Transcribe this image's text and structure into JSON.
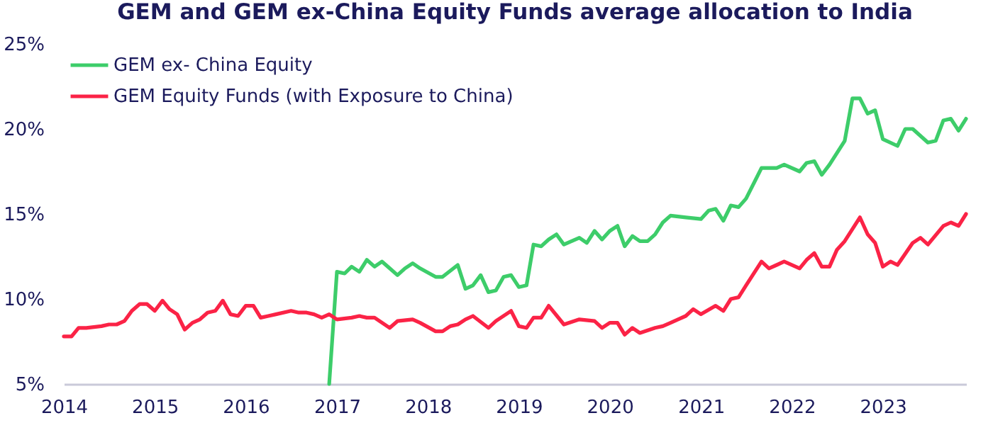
{
  "chart_data": {
    "type": "line",
    "title": "GEM and GEM ex-China Equity Funds average allocation to India",
    "xlim": [
      "2014-01",
      "2023-12"
    ],
    "xticks": [
      "2014",
      "2015",
      "2016",
      "2017",
      "2018",
      "2019",
      "2020",
      "2021",
      "2022",
      "2023"
    ],
    "ylim": [
      5,
      25
    ],
    "yticks": [
      {
        "value": 5,
        "label": "5%"
      },
      {
        "value": 10,
        "label": "10%"
      },
      {
        "value": 15,
        "label": "15%"
      },
      {
        "value": 20,
        "label": "20%"
      },
      {
        "value": 25,
        "label": "25%"
      }
    ],
    "legend": "top left",
    "series": [
      {
        "name": "GEM ex- China Equity",
        "color": "#3dcd6a",
        "x": [
          "2016-12",
          "2017-01",
          "2017-02",
          "2017-03",
          "2017-04",
          "2017-05",
          "2017-06",
          "2017-07",
          "2017-08",
          "2017-09",
          "2017-10",
          "2017-11",
          "2017-12",
          "2018-02",
          "2018-03",
          "2018-05",
          "2018-06",
          "2018-07",
          "2018-08",
          "2018-09",
          "2018-10",
          "2018-11",
          "2018-12",
          "2019-01",
          "2019-02",
          "2019-03",
          "2019-04",
          "2019-05",
          "2019-06",
          "2019-07",
          "2019-09",
          "2019-10",
          "2019-11",
          "2019-12",
          "2020-01",
          "2020-02",
          "2020-03",
          "2020-04",
          "2020-05",
          "2020-06",
          "2020-07",
          "2020-08",
          "2020-09",
          "2020-11",
          "2021-01",
          "2021-02",
          "2021-03",
          "2021-04",
          "2021-05",
          "2021-06",
          "2021-07",
          "2021-09",
          "2021-11",
          "2021-12",
          "2022-02",
          "2022-03",
          "2022-04",
          "2022-05",
          "2022-06",
          "2022-08",
          "2022-09",
          "2022-10",
          "2022-11",
          "2022-12",
          "2023-01",
          "2023-03",
          "2023-04",
          "2023-05",
          "2023-07",
          "2023-08",
          "2023-09",
          "2023-10",
          "2023-11",
          "2023-12"
        ],
        "values": [
          5.0,
          11.6,
          11.5,
          11.9,
          11.6,
          12.3,
          11.9,
          12.2,
          11.8,
          11.4,
          11.8,
          12.1,
          11.8,
          11.3,
          11.3,
          12.0,
          10.6,
          10.8,
          11.4,
          10.4,
          10.5,
          11.3,
          11.4,
          10.7,
          10.8,
          13.2,
          13.1,
          13.5,
          13.8,
          13.2,
          13.6,
          13.3,
          14.0,
          13.5,
          14.0,
          14.3,
          13.1,
          13.7,
          13.4,
          13.4,
          13.8,
          14.5,
          14.9,
          14.8,
          14.7,
          15.2,
          15.3,
          14.6,
          15.5,
          15.4,
          15.9,
          17.7,
          17.7,
          17.9,
          17.5,
          18.0,
          18.1,
          17.3,
          17.9,
          19.3,
          21.8,
          21.8,
          20.9,
          21.1,
          19.4,
          19.0,
          20.0,
          20.0,
          19.2,
          19.3,
          20.5,
          20.6,
          19.9,
          20.6
        ]
      },
      {
        "name": "GEM Equity Funds (with Exposure to China)",
        "color": "#fb2346",
        "x": [
          "2014-01",
          "2014-02",
          "2014-03",
          "2014-04",
          "2014-06",
          "2014-07",
          "2014-08",
          "2014-09",
          "2014-10",
          "2014-11",
          "2014-12",
          "2015-01",
          "2015-02",
          "2015-03",
          "2015-04",
          "2015-05",
          "2015-06",
          "2015-07",
          "2015-08",
          "2015-09",
          "2015-10",
          "2015-11",
          "2015-12",
          "2016-01",
          "2016-02",
          "2016-03",
          "2016-04",
          "2016-05",
          "2016-07",
          "2016-08",
          "2016-09",
          "2016-10",
          "2016-11",
          "2016-12",
          "2017-01",
          "2017-03",
          "2017-04",
          "2017-05",
          "2017-06",
          "2017-08",
          "2017-09",
          "2017-11",
          "2017-12",
          "2018-02",
          "2018-03",
          "2018-04",
          "2018-05",
          "2018-06",
          "2018-07",
          "2018-09",
          "2018-10",
          "2018-12",
          "2019-01",
          "2019-02",
          "2019-03",
          "2019-04",
          "2019-05",
          "2019-07",
          "2019-09",
          "2019-11",
          "2019-12",
          "2020-01",
          "2020-02",
          "2020-03",
          "2020-04",
          "2020-05",
          "2020-07",
          "2020-08",
          "2020-09",
          "2020-10",
          "2020-11",
          "2020-12",
          "2021-01",
          "2021-03",
          "2021-04",
          "2021-05",
          "2021-06",
          "2021-07",
          "2021-09",
          "2021-10",
          "2021-11",
          "2021-12",
          "2022-02",
          "2022-03",
          "2022-04",
          "2022-05",
          "2022-06",
          "2022-07",
          "2022-08",
          "2022-10",
          "2022-11",
          "2022-12",
          "2023-01",
          "2023-02",
          "2023-03",
          "2023-05",
          "2023-06",
          "2023-07",
          "2023-09",
          "2023-10",
          "2023-11",
          "2023-12"
        ],
        "values": [
          7.8,
          7.8,
          8.3,
          8.3,
          8.4,
          8.5,
          8.5,
          8.7,
          9.3,
          9.7,
          9.7,
          9.3,
          9.9,
          9.4,
          9.1,
          8.2,
          8.6,
          8.8,
          9.2,
          9.3,
          9.9,
          9.1,
          9.0,
          9.6,
          9.6,
          8.9,
          9.0,
          9.1,
          9.3,
          9.2,
          9.2,
          9.1,
          8.9,
          9.1,
          8.8,
          8.9,
          9.0,
          8.9,
          8.9,
          8.3,
          8.7,
          8.8,
          8.6,
          8.1,
          8.1,
          8.4,
          8.5,
          8.8,
          9.0,
          8.3,
          8.7,
          9.3,
          8.4,
          8.3,
          8.9,
          8.9,
          9.6,
          8.5,
          8.8,
          8.7,
          8.3,
          8.6,
          8.6,
          7.9,
          8.3,
          8.0,
          8.3,
          8.4,
          8.6,
          8.8,
          9.0,
          9.4,
          9.1,
          9.6,
          9.3,
          10.0,
          10.1,
          10.8,
          12.2,
          11.8,
          12.0,
          12.2,
          11.8,
          12.3,
          12.7,
          11.9,
          11.9,
          12.9,
          13.4,
          14.8,
          13.8,
          13.3,
          11.9,
          12.2,
          12.0,
          13.3,
          13.6,
          13.2,
          14.3,
          14.5,
          14.3,
          15.0
        ]
      }
    ]
  }
}
